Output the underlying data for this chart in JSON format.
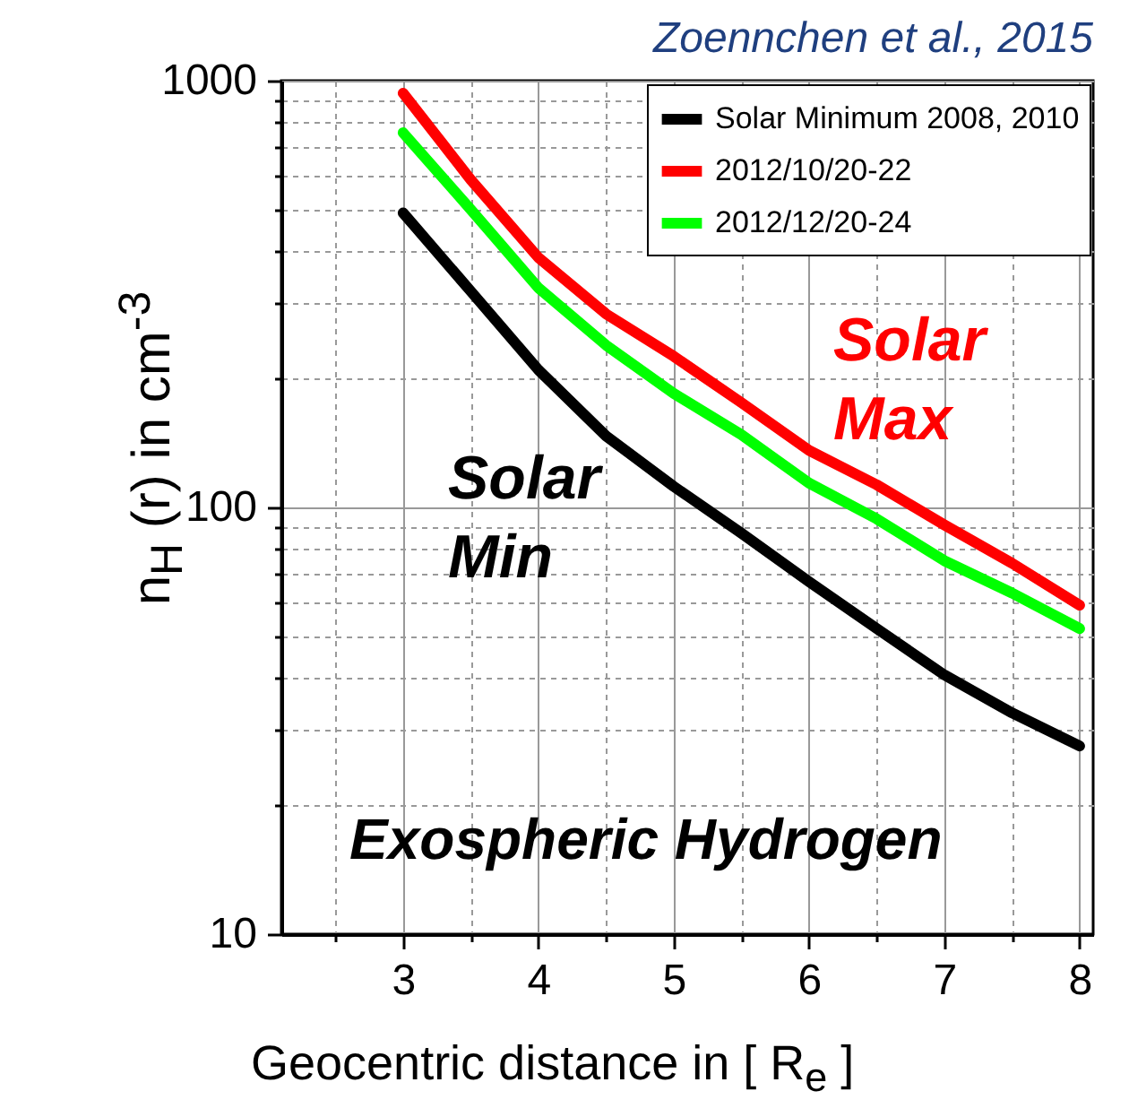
{
  "chart_data": {
    "type": "line",
    "xlabel": "Geocentric distance in [ R$_{e}$ ]",
    "ylabel": "n$_{H}$ (r) in cm$^{-3}$",
    "x": [
      3,
      3.5,
      4,
      4.5,
      5,
      5.5,
      6,
      6.5,
      7,
      7.5,
      8
    ],
    "series": [
      {
        "name": "Solar Minimum 2008, 2010",
        "color": "#000000",
        "values": [
          490,
          321,
          210,
          147,
          112,
          87,
          67,
          52,
          40.5,
          33,
          27.6
        ]
      },
      {
        "name": "2012/10/20-22",
        "color": "#ff0000",
        "values": [
          935,
          586,
          385,
          284,
          226,
          176,
          136,
          113,
          91,
          74,
          59
        ]
      },
      {
        "name": "2012/12/20-24",
        "color": "#00ff00",
        "values": [
          755,
          499,
          327,
          240,
          185,
          148,
          114,
          94,
          75,
          63,
          52
        ]
      }
    ],
    "log": true,
    "xlim": [
      2.1,
      8.1
    ],
    "ylim": [
      10,
      1000
    ],
    "xticks": [
      {
        "value": 2.5,
        "label": null
      },
      3,
      {
        "value": 3.5,
        "label": null
      },
      4,
      {
        "value": 4.5,
        "label": null
      },
      5,
      {
        "value": 5.5,
        "label": null
      },
      6,
      {
        "value": 6.5,
        "label": null
      },
      7,
      {
        "value": 7.5,
        "label": null
      },
      8
    ],
    "yticks": [
      10,
      {
        "value": 20,
        "label": null
      },
      {
        "value": 30,
        "label": null
      },
      {
        "value": 40,
        "label": null
      },
      {
        "value": 50,
        "label": null
      },
      {
        "value": 60,
        "label": null
      },
      {
        "value": 70,
        "label": null
      },
      {
        "value": 80,
        "label": null
      },
      {
        "value": 90,
        "label": null
      },
      100,
      {
        "value": 200,
        "label": null
      },
      {
        "value": 300,
        "label": null
      },
      {
        "value": 400,
        "label": null
      },
      {
        "value": 500,
        "label": null
      },
      {
        "value": 600,
        "label": null
      },
      {
        "value": 700,
        "label": null
      },
      {
        "value": 800,
        "label": null
      },
      {
        "value": 900,
        "label": null
      },
      1000
    ],
    "grid": true,
    "legend": "top right",
    "line_style": "solid",
    "annotations": [
      "Zoennchen et al., 2015",
      "Solar Max",
      "Solar Min",
      "Exospheric Hydrogen"
    ]
  }
}
